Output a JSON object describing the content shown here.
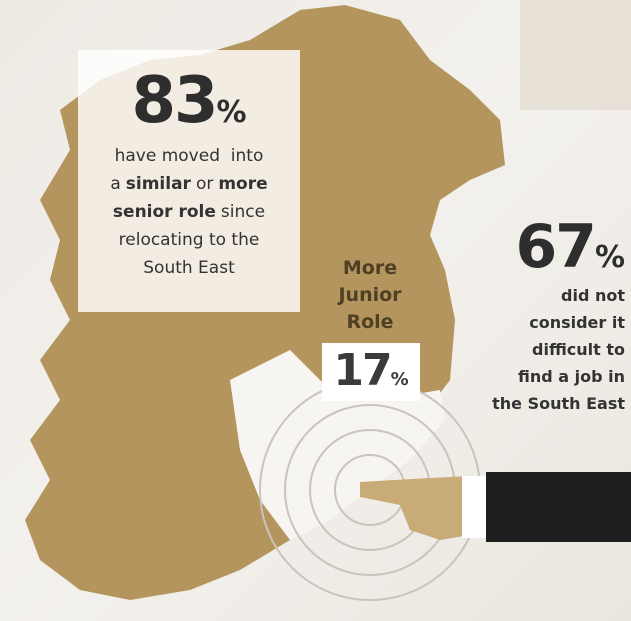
{
  "left_stat": {
    "number": "83",
    "unit": "%",
    "lines": [
      [
        {
          "text": "have moved  into",
          "bold": false
        }
      ],
      [
        {
          "text": "a",
          "bold": false
        },
        {
          "text": "similar",
          "bold": true
        },
        {
          "text": "or",
          "bold": false
        },
        {
          "text": "more",
          "bold": true
        }
      ],
      [
        {
          "text": "senior role",
          "bold": true
        },
        {
          "text": "since",
          "bold": false
        }
      ],
      [
        {
          "text": "relocating to the",
          "bold": false
        }
      ],
      [
        {
          "text": "South East",
          "bold": false
        }
      ]
    ]
  },
  "center_stat": {
    "lines": [
      "More",
      "Junior",
      "Role"
    ],
    "number": "17",
    "unit": "%"
  },
  "right_stat": {
    "number": "67",
    "unit": "%",
    "lines": [
      "did not",
      "consider it",
      "difficult to",
      "find a job in",
      "the South East"
    ]
  }
}
